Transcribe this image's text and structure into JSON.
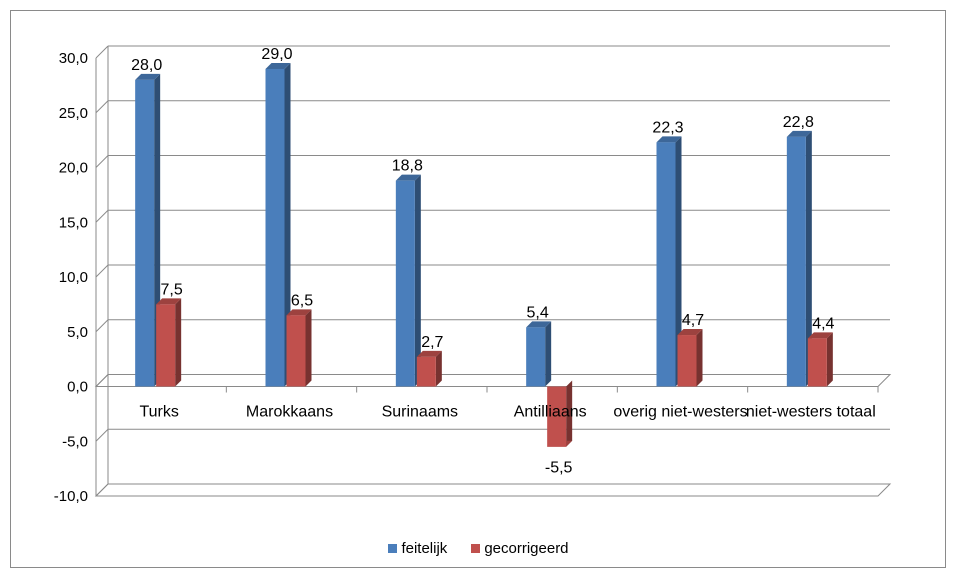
{
  "chart_data": {
    "type": "bar",
    "categories": [
      "Turks",
      "Marokkaans",
      "Surinaams",
      "Antilliaans",
      "overig niet-westers",
      "niet-westers totaal"
    ],
    "series": [
      {
        "name": "feitelijk",
        "values": [
          28.0,
          29.0,
          18.8,
          5.4,
          22.3,
          22.8
        ],
        "labels": [
          "28,0",
          "29,0",
          "18,8",
          "5,4",
          "22,3",
          "22,8"
        ],
        "color": "#4a7ebb"
      },
      {
        "name": "gecorrigeerd",
        "values": [
          7.5,
          6.5,
          2.7,
          -5.5,
          4.7,
          4.4
        ],
        "labels": [
          "7,5",
          "6,5",
          "2,7",
          "-5,5",
          "4,7",
          "4,4"
        ],
        "color": "#c0504d"
      }
    ],
    "yticks": [
      30.0,
      25.0,
      20.0,
      15.0,
      10.0,
      5.0,
      0.0,
      -5.0,
      -10.0
    ],
    "ytick_labels": [
      "30,0",
      "25,0",
      "20,0",
      "15,0",
      "10,0",
      "5,0",
      "0,0",
      "-5,0",
      "-10,0"
    ],
    "ylim": [
      -10,
      30
    ],
    "grid": true,
    "legend_position": "bottom",
    "style": "3d-column"
  }
}
